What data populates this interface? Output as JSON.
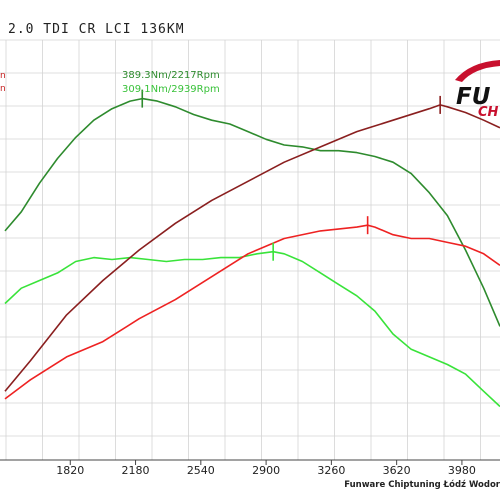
{
  "title": "2.0 TDI CR LCI 136KM",
  "footer": "Funware Chiptuning Łódź Wodor",
  "logo": {
    "text_main": "FU",
    "text_sub": "CH"
  },
  "colors": {
    "torque_tuned": "#2e8b2e",
    "torque_stock": "#39e33a",
    "power_tuned": "#8a1f1f",
    "power_stock": "#ee2222",
    "grid": "#d4d4d4",
    "logo_red": "#c8102e"
  },
  "annotations": {
    "tuned_peak": "389.3Nm/2217Rpm",
    "stock_peak": "309.1Nm/2939Rpm"
  },
  "chart_data": {
    "type": "line",
    "title": "2.0 TDI CR LCI 136KM",
    "xlabel": "",
    "ylabel": "",
    "x_ticks": [
      1820,
      2180,
      2540,
      2900,
      3260,
      3620,
      3980
    ],
    "xlim": [
      1460,
      4190
    ],
    "grid": true,
    "series": [
      {
        "color": "torque_tuned",
        "x": [
          1460,
          1550,
          1650,
          1750,
          1850,
          1950,
          2050,
          2150,
          2217,
          2300,
          2400,
          2500,
          2600,
          2700,
          2800,
          2900,
          3000,
          3100,
          3200,
          3300,
          3400,
          3500,
          3600,
          3700,
          3800,
          3900,
          4000,
          4100,
          4190
        ],
        "y": [
          320,
          330,
          345,
          358,
          369,
          378,
          384,
          388,
          389.3,
          388,
          385,
          381,
          378,
          376,
          372,
          368,
          365,
          364,
          362,
          362,
          361,
          359,
          356,
          350,
          340,
          328,
          310,
          290,
          270
        ]
      },
      {
        "color": "torque_stock",
        "x": [
          1460,
          1550,
          1650,
          1750,
          1850,
          1950,
          2050,
          2150,
          2250,
          2350,
          2450,
          2550,
          2650,
          2750,
          2850,
          2939,
          3000,
          3100,
          3200,
          3300,
          3400,
          3500,
          3600,
          3700,
          3800,
          3900,
          4000,
          4100,
          4190
        ],
        "y": [
          282,
          290,
          294,
          298,
          304,
          306,
          305,
          306,
          305,
          304,
          305,
          305,
          306,
          306,
          308,
          309.1,
          308,
          304,
          298,
          292,
          286,
          278,
          266,
          258,
          254,
          250,
          245,
          236,
          228
        ]
      },
      {
        "color": "power_tuned",
        "x": [
          1460,
          1600,
          1800,
          2000,
          2200,
          2400,
          2600,
          2800,
          3000,
          3200,
          3400,
          3600,
          3800,
          3860,
          3900,
          4000,
          4100,
          4190
        ]
      },
      {
        "color": "power_stock",
        "x": [
          1460,
          1600,
          1800,
          2000,
          2200,
          2400,
          2600,
          2800,
          3000,
          3200,
          3400,
          3460,
          3500,
          3600,
          3700,
          3800,
          3900,
          4000,
          4100,
          4190
        ]
      }
    ],
    "power_values": {
      "power_tuned": [
        58,
        66,
        78,
        87,
        95,
        102,
        108,
        113,
        118,
        122,
        126,
        129,
        132,
        133,
        132.5,
        131,
        129,
        127
      ],
      "power_stock": [
        56,
        61,
        67,
        71,
        77,
        82,
        88,
        94,
        98,
        100,
        101,
        101.5,
        101,
        99,
        98,
        98,
        97,
        96,
        94,
        91
      ]
    }
  }
}
